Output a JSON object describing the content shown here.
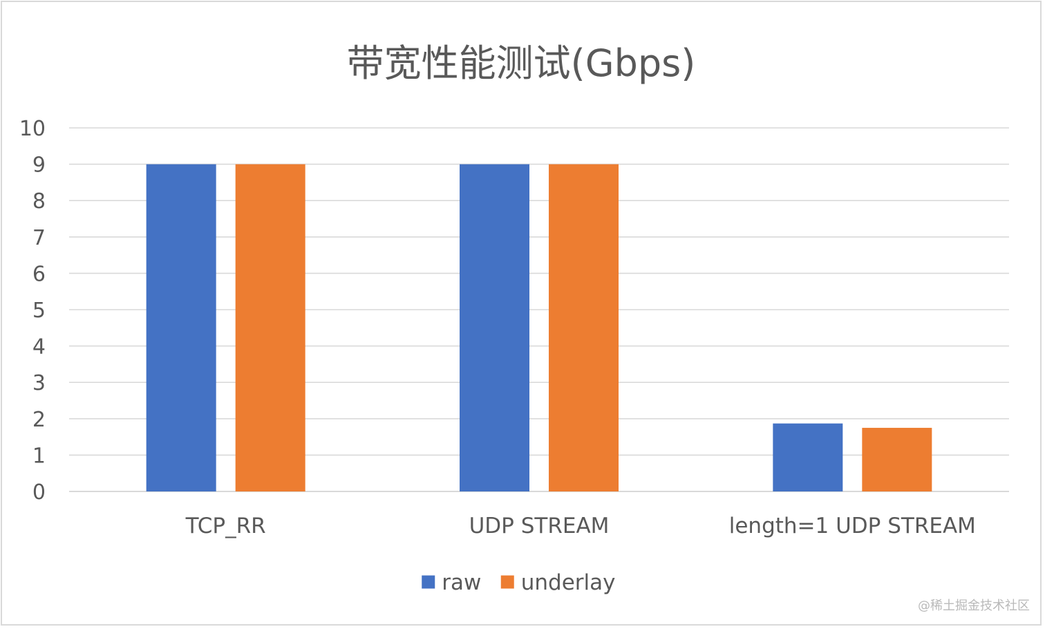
{
  "chart_data": {
    "type": "bar",
    "title": "带宽性能测试(Gbps)",
    "categories": [
      "TCP_RR",
      "UDP STREAM",
      "length=1 UDP STREAM"
    ],
    "series": [
      {
        "name": "raw",
        "color": "#4472C4",
        "values": [
          9,
          9,
          1.87
        ]
      },
      {
        "name": "underlay",
        "color": "#ED7D31",
        "values": [
          9,
          9,
          1.75
        ]
      }
    ],
    "yticks": [
      0,
      1,
      2,
      3,
      4,
      5,
      6,
      7,
      8,
      9,
      10
    ],
    "ylim": [
      0,
      10
    ],
    "grid": true,
    "legend": "bottom-center",
    "xlabel": "",
    "ylabel": ""
  },
  "watermark": "@稀土掘金技术社区",
  "colors": {
    "grid": "#d9d9d9",
    "text": "#595959"
  }
}
